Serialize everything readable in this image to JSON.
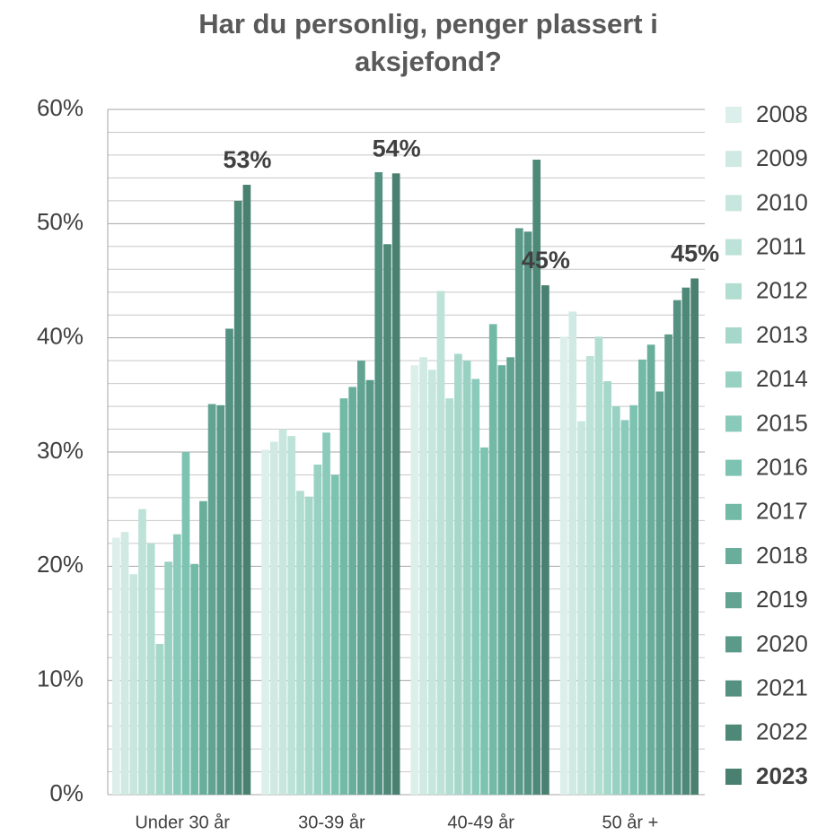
{
  "chart_data": {
    "type": "bar",
    "title": "Har du personlig, penger plassert i aksjefond?",
    "categories": [
      "Under 30 år",
      "30-39 år",
      "40-49 år",
      "50 år +"
    ],
    "ylim": [
      0,
      60
    ],
    "yticks": [
      {
        "value": 0,
        "label": "0%"
      },
      {
        "value": 10,
        "label": "10%"
      },
      {
        "value": 20,
        "label": "20%"
      },
      {
        "value": 30,
        "label": "30%"
      },
      {
        "value": 40,
        "label": "40%"
      },
      {
        "value": 50,
        "label": "50%"
      },
      {
        "value": 60,
        "label": "60%"
      }
    ],
    "y_minor_ticks": [
      2,
      4,
      6,
      8,
      12,
      14,
      16,
      18,
      22,
      24,
      26,
      28,
      32,
      34,
      36,
      38,
      42,
      44,
      46,
      48,
      52,
      54,
      56,
      58
    ],
    "grid": true,
    "legend": "right",
    "series": [
      {
        "name": "2008",
        "color": "#dcefea",
        "values": [
          22.5,
          30.2,
          37.6,
          40.1
        ]
      },
      {
        "name": "2009",
        "color": "#d0eae3",
        "values": [
          23.0,
          30.9,
          38.3,
          42.3
        ]
      },
      {
        "name": "2010",
        "color": "#c7e6dd",
        "values": [
          19.3,
          32.0,
          37.2,
          32.7
        ]
      },
      {
        "name": "2011",
        "color": "#bde2d7",
        "values": [
          25.0,
          31.4,
          44.1,
          38.4
        ]
      },
      {
        "name": "2012",
        "color": "#b2ddd1",
        "values": [
          22.0,
          26.6,
          34.7,
          40.1
        ]
      },
      {
        "name": "2013",
        "color": "#a6d8ca",
        "values": [
          13.2,
          26.1,
          38.6,
          36.2
        ]
      },
      {
        "name": "2014",
        "color": "#98d1c2",
        "values": [
          20.4,
          28.9,
          38.0,
          34.0
        ]
      },
      {
        "name": "2015",
        "color": "#8acaba",
        "values": [
          22.8,
          31.7,
          36.4,
          32.8
        ]
      },
      {
        "name": "2016",
        "color": "#7dc3b1",
        "values": [
          30.0,
          28.0,
          30.4,
          34.1
        ]
      },
      {
        "name": "2017",
        "color": "#72b9a6",
        "values": [
          20.2,
          34.7,
          41.2,
          38.1
        ]
      },
      {
        "name": "2018",
        "color": "#69ae9b",
        "values": [
          25.7,
          35.7,
          37.6,
          39.4
        ]
      },
      {
        "name": "2019",
        "color": "#62a391",
        "values": [
          34.2,
          38.0,
          38.3,
          35.3
        ]
      },
      {
        "name": "2020",
        "color": "#5b9a88",
        "values": [
          34.1,
          36.3,
          49.6,
          40.3
        ]
      },
      {
        "name": "2021",
        "color": "#549180",
        "values": [
          40.8,
          54.5,
          49.3,
          43.3
        ]
      },
      {
        "name": "2022",
        "color": "#4e8877",
        "values": [
          52.0,
          48.2,
          55.6,
          44.4
        ]
      },
      {
        "name": "2023",
        "color": "#4a8070",
        "highlight": true,
        "values": [
          53.4,
          54.4,
          44.6,
          45.2
        ],
        "value_labels": [
          "53%",
          "54%",
          "45%",
          "45%"
        ]
      }
    ]
  }
}
